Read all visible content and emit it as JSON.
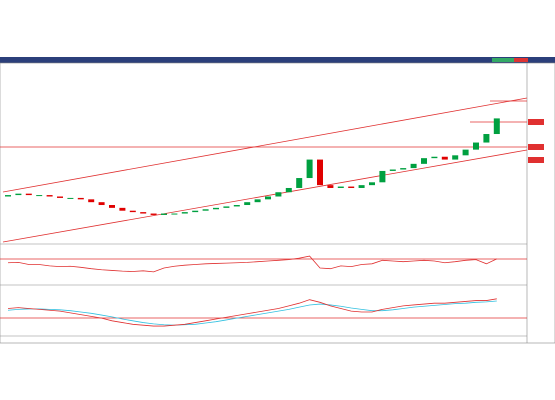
{
  "chart_data": {
    "type": "candlestick",
    "open": [
      25,
      26,
      27,
      26,
      26,
      25,
      24,
      24,
      23,
      21,
      19,
      17,
      15,
      14,
      13,
      12,
      13,
      13,
      14,
      15,
      16,
      17,
      18,
      19,
      21,
      23,
      25,
      28,
      31,
      38,
      51,
      33,
      31,
      32,
      31,
      33,
      35,
      43,
      44,
      45,
      48,
      52,
      53,
      51,
      54,
      58,
      63,
      69
    ],
    "close": [
      26,
      27,
      26,
      26,
      25,
      24,
      24,
      23,
      21,
      19,
      17,
      15,
      14,
      13,
      12,
      13,
      13,
      14,
      15,
      16,
      17,
      18,
      19,
      21,
      23,
      25,
      28,
      31,
      38,
      51,
      33,
      31,
      32,
      31,
      33,
      35,
      43,
      44,
      45,
      48,
      52,
      53,
      51,
      54,
      58,
      63,
      69,
      80
    ],
    "ylim": [
      0,
      100
    ],
    "rsi": [
      55,
      56,
      50,
      50,
      46,
      44,
      45,
      42,
      38,
      35,
      33,
      31,
      30,
      32,
      29,
      40,
      45,
      48,
      50,
      52,
      53,
      54,
      55,
      56,
      58,
      60,
      62,
      64,
      68,
      74,
      40,
      38,
      46,
      44,
      50,
      52,
      62,
      60,
      58,
      60,
      62,
      60,
      55,
      58,
      62,
      64,
      52,
      66
    ],
    "rsi_ylim": [
      0,
      100
    ],
    "macd": [
      58,
      60,
      58,
      56,
      54,
      52,
      48,
      44,
      40,
      36,
      30,
      26,
      22,
      20,
      18,
      18,
      20,
      22,
      26,
      30,
      34,
      38,
      42,
      46,
      50,
      54,
      58,
      64,
      70,
      78,
      72,
      64,
      58,
      52,
      50,
      50,
      56,
      60,
      64,
      66,
      68,
      70,
      70,
      72,
      74,
      76,
      76,
      80
    ],
    "signal": [
      54,
      56,
      57,
      57,
      56,
      55,
      53,
      50,
      47,
      43,
      39,
      34,
      30,
      26,
      23,
      21,
      20,
      21,
      22,
      25,
      28,
      32,
      36,
      40,
      44,
      48,
      52,
      56,
      61,
      66,
      68,
      66,
      63,
      59,
      56,
      53,
      53,
      55,
      58,
      61,
      63,
      65,
      67,
      69,
      70,
      72,
      73,
      75
    ],
    "macd_ylim": [
      0,
      100
    ],
    "up_color": "#00a040",
    "down_color": "#e00000"
  }
}
